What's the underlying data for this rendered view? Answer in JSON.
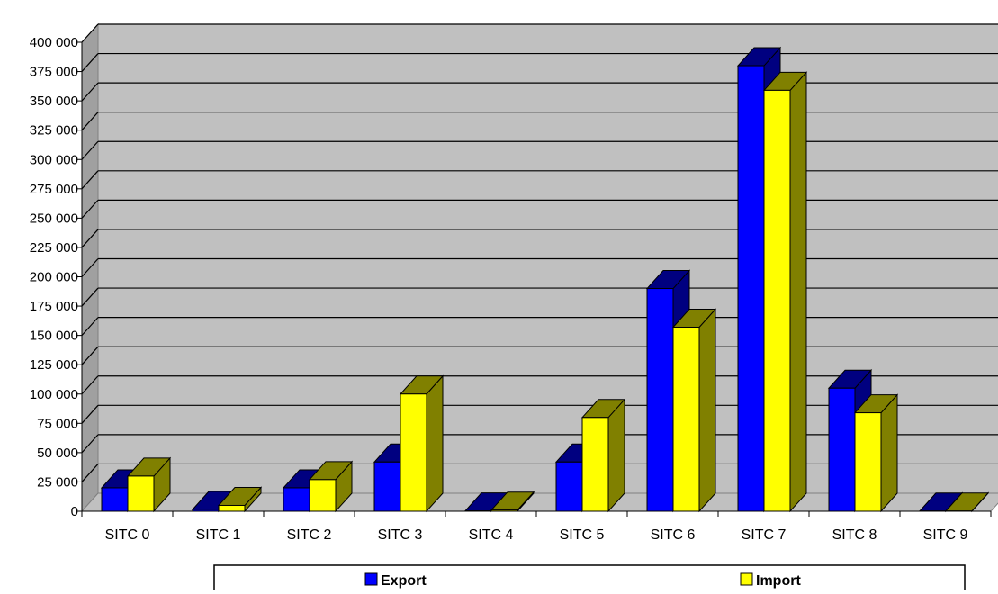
{
  "chart_data": {
    "type": "bar",
    "title": "",
    "xlabel": "",
    "ylabel": "",
    "ylim": [
      0,
      400000
    ],
    "y_tick_step": 25000,
    "y_tick_labels": [
      "0",
      "25 000",
      "50 000",
      "75 000",
      "100 000",
      "125 000",
      "150 000",
      "175 000",
      "200 000",
      "225 000",
      "250 000",
      "275 000",
      "300 000",
      "325 000",
      "350 000",
      "375 000",
      "400 000"
    ],
    "grid": true,
    "style": "3d-clustered-column",
    "categories": [
      "SITC 0",
      "SITC 1",
      "SITC 2",
      "SITC 3",
      "SITC 4",
      "SITC 5",
      "SITC 6",
      "SITC 7",
      "SITC 8",
      "SITC 9"
    ],
    "series": [
      {
        "name": "Export",
        "color": "#0000ff",
        "values": [
          20000,
          1500,
          20000,
          42000,
          300,
          42000,
          190000,
          380000,
          105000,
          200
        ]
      },
      {
        "name": "Import",
        "color": "#ffff00",
        "values": [
          30000,
          5000,
          27000,
          100000,
          1000,
          80000,
          157000,
          359000,
          84000,
          200
        ]
      }
    ],
    "legend_position": "bottom"
  },
  "colors": {
    "plot_wall": "#c0c0c0",
    "export_side": "#000080",
    "import_side": "#808000",
    "grid": "#000000"
  }
}
